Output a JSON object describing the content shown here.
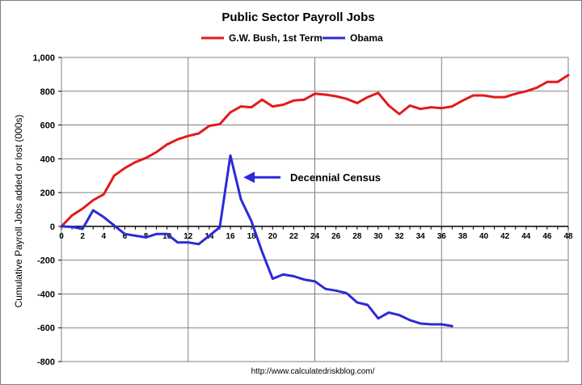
{
  "chart_data": {
    "type": "line",
    "title": "Public Sector Payroll Jobs",
    "ylabel": "Cumulative Payroll Jobs added or lost (000s)",
    "xlabel": "",
    "xlim": [
      0,
      48
    ],
    "ylim": [
      -800,
      1000
    ],
    "x_ticks": [
      0,
      2,
      4,
      6,
      8,
      10,
      12,
      14,
      16,
      18,
      20,
      22,
      24,
      26,
      28,
      30,
      32,
      34,
      36,
      38,
      40,
      42,
      44,
      46,
      48
    ],
    "y_ticks": [
      -800,
      -600,
      -400,
      -200,
      0,
      200,
      400,
      600,
      800,
      1000
    ],
    "y_tick_labels": [
      "-800",
      "-600",
      "-400",
      "-200",
      "0",
      "200",
      "400",
      "600",
      "800",
      "1,000"
    ],
    "grid": {
      "vertical_every": 12,
      "horizontal": true
    },
    "legend": {
      "placement": "top-center"
    },
    "series": [
      {
        "name": "G.W. Bush, 1st Term",
        "color": "#e31a1c",
        "x": [
          0,
          1,
          2,
          3,
          4,
          5,
          6,
          7,
          8,
          9,
          10,
          11,
          12,
          13,
          14,
          15,
          16,
          17,
          18,
          19,
          20,
          21,
          22,
          23,
          24,
          25,
          26,
          27,
          28,
          29,
          30,
          31,
          32,
          33,
          34,
          35,
          36,
          37,
          38,
          39,
          40,
          41,
          42,
          43,
          44,
          45,
          46,
          47,
          48
        ],
        "values": [
          0,
          65,
          105,
          155,
          190,
          300,
          345,
          380,
          405,
          440,
          485,
          515,
          535,
          550,
          595,
          605,
          675,
          710,
          705,
          750,
          710,
          720,
          745,
          750,
          785,
          780,
          770,
          755,
          730,
          765,
          790,
          715,
          665,
          715,
          695,
          705,
          700,
          710,
          745,
          775,
          775,
          765,
          765,
          785,
          800,
          820,
          855,
          855,
          895
        ]
      },
      {
        "name": "Obama",
        "color": "#2b2bd6",
        "x": [
          0,
          1,
          2,
          3,
          4,
          5,
          6,
          7,
          8,
          9,
          10,
          11,
          12,
          13,
          14,
          15,
          16,
          17,
          18,
          19,
          20,
          21,
          22,
          23,
          24,
          25,
          26,
          27,
          28,
          29,
          30,
          31,
          32,
          33,
          34,
          35,
          36,
          37
        ],
        "values": [
          0,
          -3,
          -15,
          95,
          55,
          5,
          -45,
          -55,
          -65,
          -45,
          -45,
          -95,
          -95,
          -105,
          -55,
          -5,
          420,
          160,
          30,
          -150,
          -310,
          -285,
          -295,
          -315,
          -325,
          -370,
          -380,
          -395,
          -450,
          -465,
          -545,
          -510,
          -525,
          -555,
          -575,
          -580,
          -580,
          -590
        ]
      }
    ],
    "annotation": {
      "text": "Decennial Census",
      "arrow_to": {
        "x": 17,
        "y": 290
      }
    },
    "source": "http://www.calculatedriskblog.com/"
  }
}
